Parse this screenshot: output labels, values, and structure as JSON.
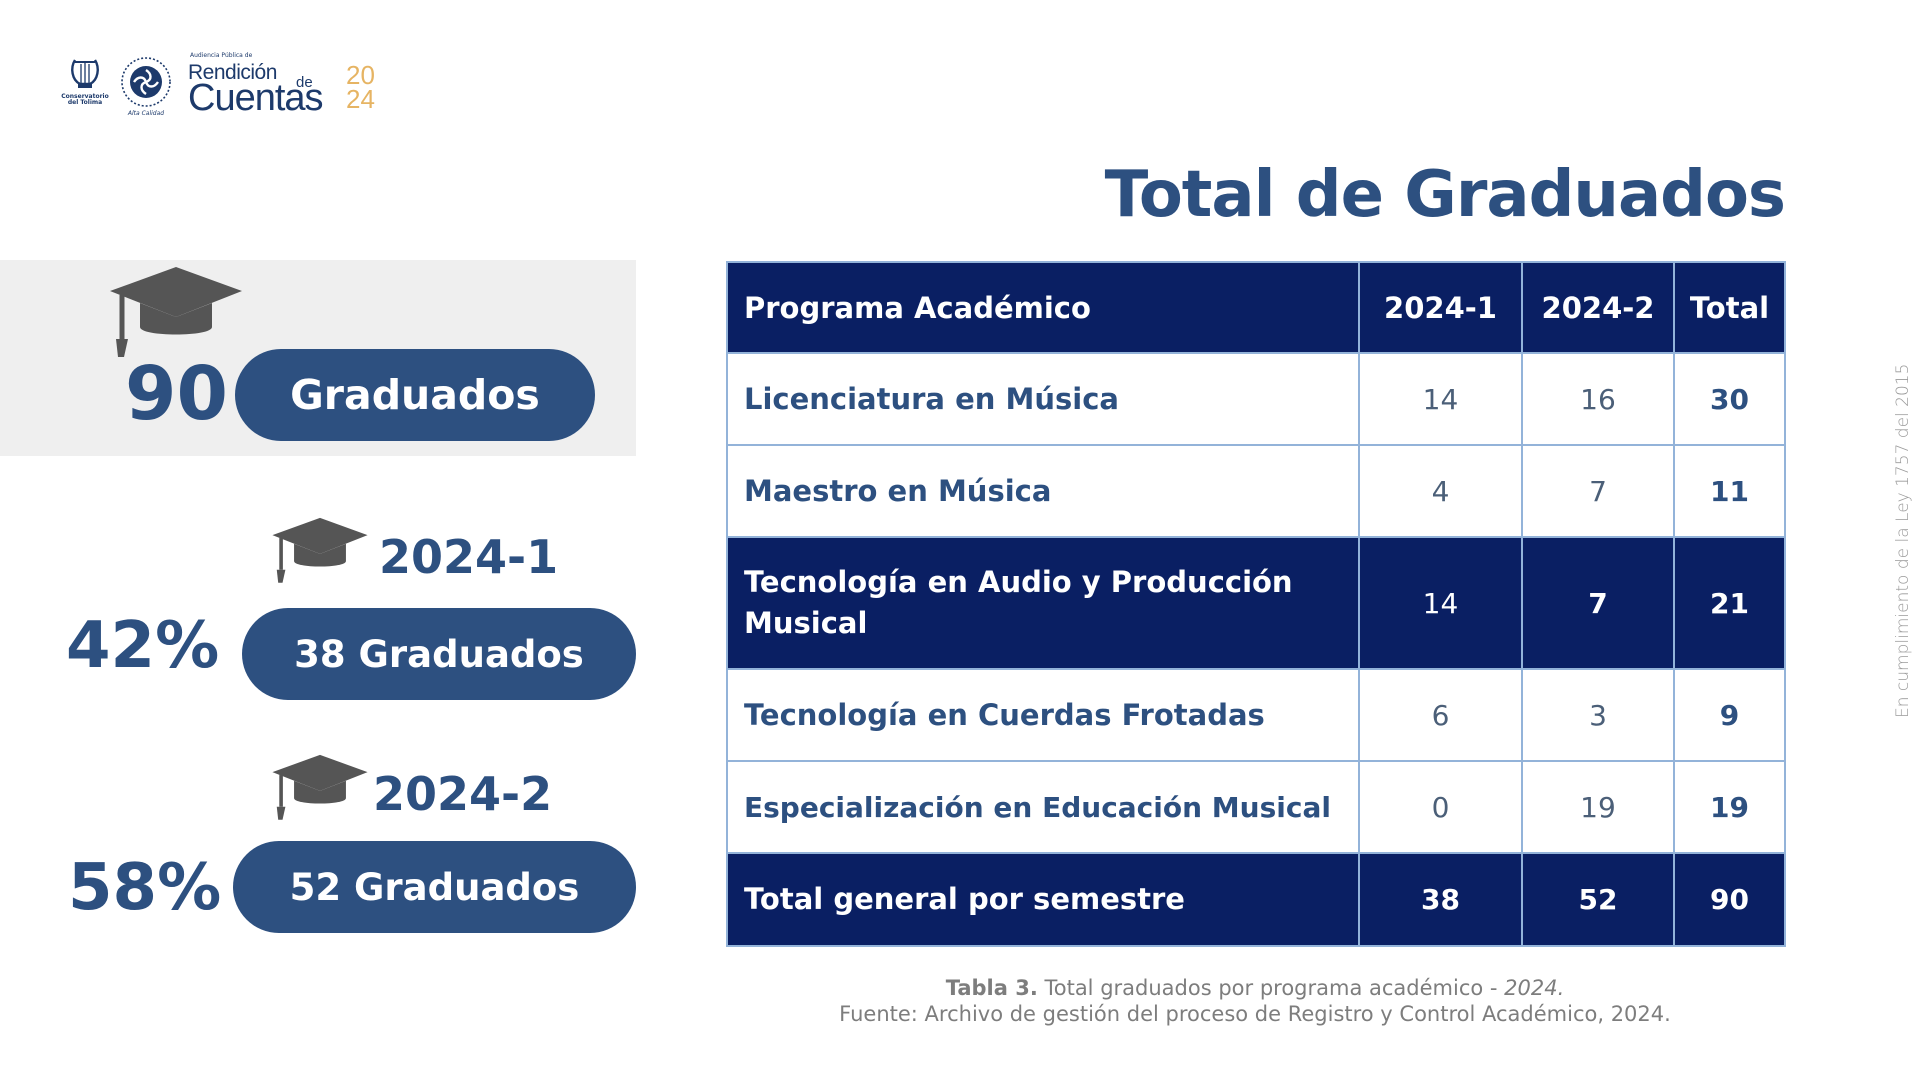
{
  "header": {
    "conservatorio_logo": "Conservatorio del Tolima",
    "alma_logo": "Alta Calidad",
    "rendicion_logo": {
      "top_line": "Audiencia Pública de",
      "line1": "Rendición",
      "de": "de",
      "line2": "Cuentas",
      "year_top": "20",
      "year_bottom": "24"
    }
  },
  "title": "Total de Graduados",
  "summary": {
    "total_number": "90",
    "total_label": "Graduados",
    "semesters": [
      {
        "label": "2024-1",
        "percent": "42%",
        "count_label": "38 Graduados"
      },
      {
        "label": "2024-2",
        "percent": "58%",
        "count_label": "52 Graduados"
      }
    ]
  },
  "table": {
    "headers": [
      "Programa Académico",
      "2024-1",
      "2024-2",
      "Total"
    ],
    "rows": [
      {
        "program": "Licenciatura en Música",
        "s1": "14",
        "s2": "16",
        "total": "30"
      },
      {
        "program": "Maestro en Música",
        "s1": "4",
        "s2": "7",
        "total": "11"
      },
      {
        "program": "Tecnología en Audio y Producción Musical",
        "s1": "14",
        "s2": "7",
        "total": "21"
      },
      {
        "program": "Tecnología en Cuerdas Frotadas",
        "s1": "6",
        "s2": "3",
        "total": "9"
      },
      {
        "program": "Especialización en Educación Musical",
        "s1": "0",
        "s2": "19",
        "total": "19"
      }
    ],
    "footer": {
      "label": "Total general por semestre",
      "s1": "38",
      "s2": "52",
      "total": "90"
    }
  },
  "caption": {
    "label": "Tabla 3.",
    "text": " Total graduados por programa académico - ",
    "year": "2024.",
    "source": "Fuente: Archivo de gestión del proceso de Registro y Control Académico, 2024."
  },
  "side_note": "En cumplimiento de la Ley 1757 del 2015",
  "colors": {
    "primary": "#2d5080",
    "table_dark": "#0a1f63",
    "border": "#93b3d9",
    "accent_gold": "#e6b463",
    "cap_gray": "#555555"
  }
}
